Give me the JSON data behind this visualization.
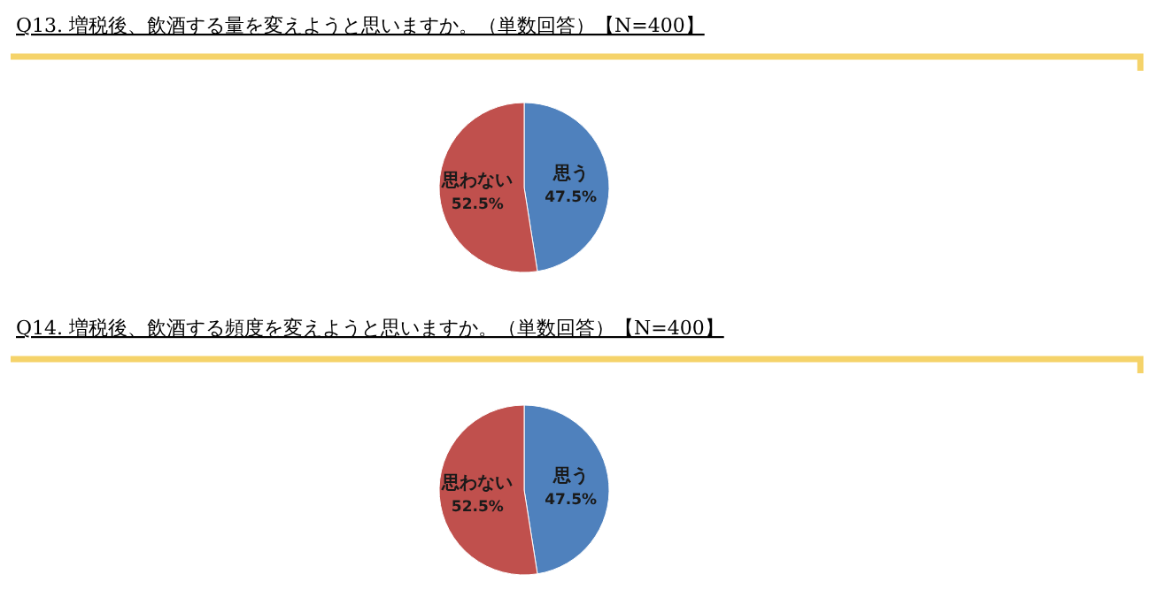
{
  "chart_data": [
    {
      "type": "pie",
      "title": "Q13. 増税後、飲酒する量を変えようと思いますか。（単数回答）【N=400】",
      "categories": [
        "思う",
        "思わない"
      ],
      "values": [
        47.5,
        52.5
      ],
      "colors": [
        "#4f81bd",
        "#c0504d"
      ],
      "value_labels": [
        "47.5%",
        "52.5%"
      ],
      "legend": false
    },
    {
      "type": "pie",
      "title": "Q14. 増税後、飲酒する頻度を変えようと思いますか。（単数回答）【N=400】",
      "categories": [
        "思う",
        "思わない"
      ],
      "values": [
        47.5,
        52.5
      ],
      "colors": [
        "#4f81bd",
        "#c0504d"
      ],
      "value_labels": [
        "47.5%",
        "52.5%"
      ],
      "legend": false
    }
  ]
}
